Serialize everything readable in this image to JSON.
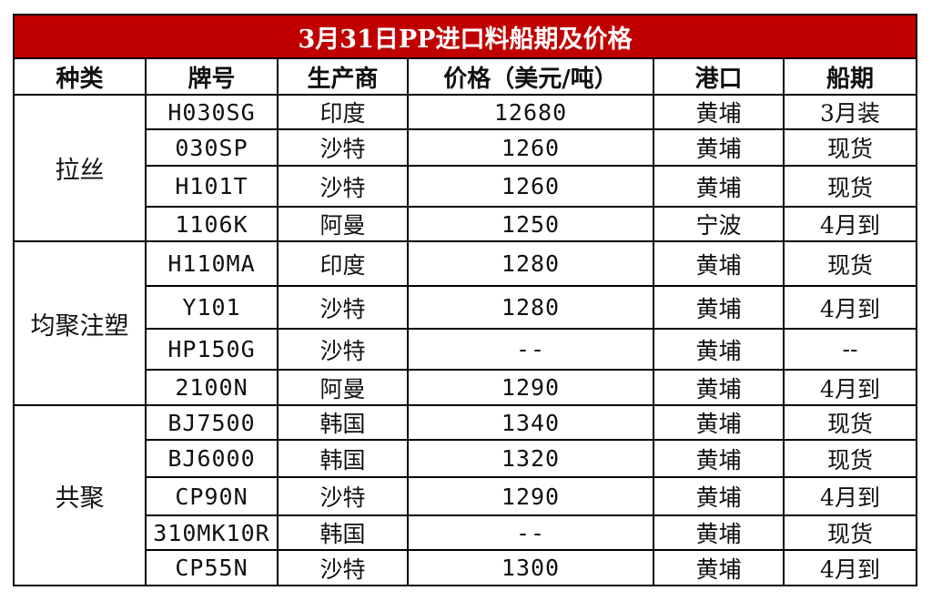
{
  "title": "3月31日PP进口料船期及价格",
  "headers": [
    "种类",
    "牌号",
    "生产商",
    "价格（美元/吨）",
    "港口",
    "船期"
  ],
  "groups": [
    {
      "category": "拉丝",
      "rows": [
        {
          "grade": "H030SG",
          "producer": "印度",
          "price": "12680",
          "port": "黄埔",
          "shipping": "3月装"
        },
        {
          "grade": "030SP",
          "producer": "沙特",
          "price": "1260",
          "port": "黄埔",
          "shipping": "现货"
        },
        {
          "grade": "H101T",
          "producer": "沙特",
          "price": "1260",
          "port": "黄埔",
          "shipping": "现货"
        },
        {
          "grade": "1106K",
          "producer": "阿曼",
          "price": "1250",
          "port": "宁波",
          "shipping": "4月到"
        }
      ]
    },
    {
      "category": "均聚注塑",
      "rows": [
        {
          "grade": "H110MA",
          "producer": "印度",
          "price": "1280",
          "port": "黄埔",
          "shipping": "现货"
        },
        {
          "grade": "Y101",
          "producer": "沙特",
          "price": "1280",
          "port": "黄埔",
          "shipping": "4月到"
        },
        {
          "grade": "HP150G",
          "producer": "沙特",
          "price": "--",
          "port": "黄埔",
          "shipping": "--"
        },
        {
          "grade": "2100N",
          "producer": "阿曼",
          "price": "1290",
          "port": "黄埔",
          "shipping": "4月到"
        }
      ]
    },
    {
      "category": "共聚",
      "rows": [
        {
          "grade": "BJ7500",
          "producer": "韩国",
          "price": "1340",
          "port": "黄埔",
          "shipping": "现货"
        },
        {
          "grade": "BJ6000",
          "producer": "韩国",
          "price": "1320",
          "port": "黄埔",
          "shipping": "现货"
        },
        {
          "grade": "CP90N",
          "producer": "沙特",
          "price": "1290",
          "port": "黄埔",
          "shipping": "4月到"
        },
        {
          "grade": "310MK10R",
          "producer": "韩国",
          "price": "--",
          "port": "黄埔",
          "shipping": "现货"
        },
        {
          "grade": "CP55N",
          "producer": "沙特",
          "price": "1300",
          "port": "黄埔",
          "shipping": "4月到"
        }
      ]
    }
  ]
}
